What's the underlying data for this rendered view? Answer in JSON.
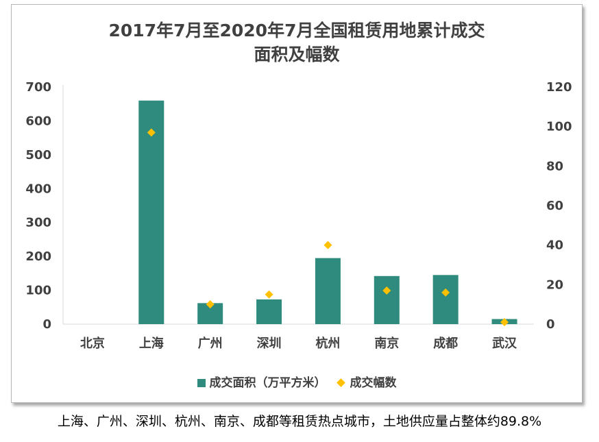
{
  "chart_data": {
    "type": "bar",
    "title_line1": "2017年7月至2020年7月全国租赁用地累计成交",
    "title_line2": "面积及幅数",
    "categories": [
      "北京",
      "上海",
      "广州",
      "深圳",
      "杭州",
      "南京",
      "成都",
      "武汉"
    ],
    "series": [
      {
        "name": "成交面积（万平方米）",
        "axis": "left",
        "type": "bar",
        "values": [
          0,
          660,
          62,
          73,
          195,
          142,
          145,
          15
        ]
      },
      {
        "name": "成交幅数",
        "axis": "right",
        "type": "scatter",
        "values": [
          0,
          97,
          10,
          15,
          40,
          17,
          16,
          1
        ]
      }
    ],
    "ylim_left": [
      0,
      700
    ],
    "yticks_left": [
      "0",
      "100",
      "200",
      "300",
      "400",
      "500",
      "600",
      "700"
    ],
    "ylim_right": [
      0,
      120
    ],
    "yticks_right": [
      "0",
      "20",
      "40",
      "60",
      "80",
      "100",
      "120"
    ],
    "colors": {
      "bar": "#2e8b7e",
      "marker": "#ffc000"
    },
    "legend_position": "bottom",
    "grid": false
  },
  "caption": "上海、广州、深圳、杭州、南京、成都等租赁热点城市，土地供应量占整体约89.8%"
}
